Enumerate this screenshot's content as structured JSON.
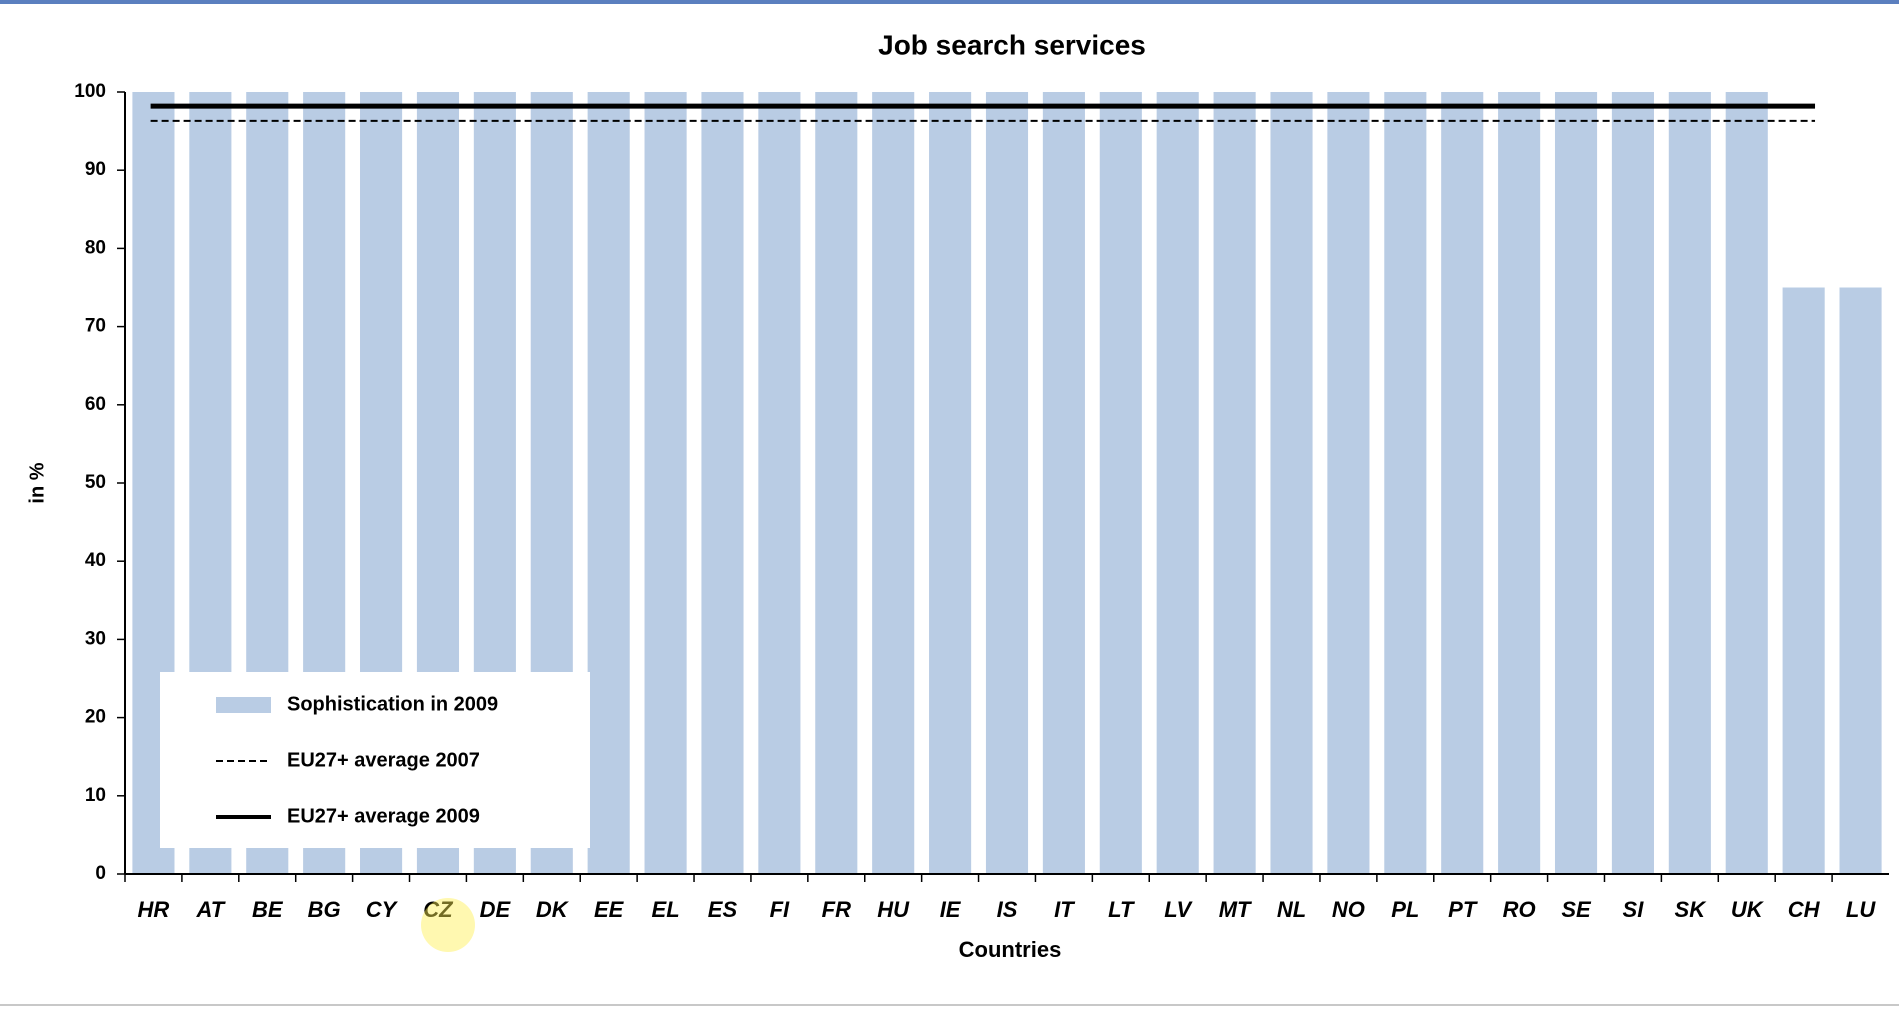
{
  "chart_data": {
    "type": "bar",
    "title": "Job search services",
    "y_label": "in %",
    "x_label": "Countries",
    "categories": [
      "HR",
      "AT",
      "BE",
      "BG",
      "CY",
      "CZ",
      "DE",
      "DK",
      "EE",
      "EL",
      "ES",
      "FI",
      "FR",
      "HU",
      "IE",
      "IS",
      "IT",
      "LT",
      "LV",
      "MT",
      "NL",
      "NO",
      "PL",
      "PT",
      "RO",
      "SE",
      "SI",
      "SK",
      "UK",
      "CH",
      "LU"
    ],
    "series": [
      {
        "name": "Sophistication in 2009",
        "color": "#b9cce4",
        "values": [
          100,
          100,
          100,
          100,
          100,
          100,
          100,
          100,
          100,
          100,
          100,
          100,
          100,
          100,
          100,
          100,
          100,
          100,
          100,
          100,
          100,
          100,
          100,
          100,
          100,
          100,
          100,
          100,
          100,
          75,
          75
        ]
      }
    ],
    "reference_lines": [
      {
        "name": "EU27+ average 2007",
        "value": 96.3,
        "color": "#000000",
        "dashed": true
      },
      {
        "name": "EU27+ average 2009",
        "value": 98.2,
        "color": "#000000",
        "dashed": false
      }
    ],
    "ylim": [
      0,
      100
    ],
    "yticks": [
      0,
      10,
      20,
      30,
      40,
      50,
      60,
      70,
      80,
      90,
      100
    ],
    "legend": "lower left"
  }
}
